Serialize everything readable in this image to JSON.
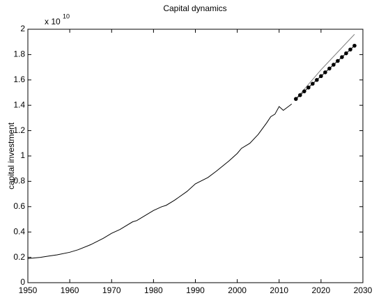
{
  "chart_data": {
    "type": "line",
    "title": "Capital dynamics",
    "ylabel": "capital investment",
    "exponent_label": {
      "base": "x 10",
      "power": "10"
    },
    "xlim": [
      1950,
      2030
    ],
    "xticks": [
      1950,
      1960,
      1970,
      1980,
      1990,
      2000,
      2010,
      2020,
      2030
    ],
    "ylim": [
      0,
      2
    ],
    "yticks": [
      0,
      0.2,
      0.4,
      0.6,
      0.8,
      1,
      1.2,
      1.4,
      1.6,
      1.8,
      2
    ],
    "series": [
      {
        "color": "#000000",
        "marker": false,
        "x": [
          1950,
          1953,
          1955,
          1957,
          1960,
          1962,
          1965,
          1968,
          1970,
          1972,
          1975,
          1976,
          1978,
          1980,
          1982,
          1983,
          1985,
          1988,
          1990,
          1993,
          1995,
          1998,
          2000,
          2001,
          2003,
          2005,
          2007,
          2008,
          2009,
          2010,
          2011,
          2013
        ],
        "values": [
          0.19,
          0.2,
          0.21,
          0.22,
          0.24,
          0.26,
          0.3,
          0.35,
          0.39,
          0.42,
          0.48,
          0.49,
          0.53,
          0.57,
          0.6,
          0.61,
          0.65,
          0.72,
          0.78,
          0.83,
          0.88,
          0.96,
          1.02,
          1.06,
          1.1,
          1.17,
          1.26,
          1.31,
          1.33,
          1.39,
          1.36,
          1.41
        ]
      },
      {
        "color": "#808080",
        "marker": false,
        "x": [
          2014,
          2020,
          2028
        ],
        "values": [
          1.45,
          1.68,
          1.96
        ]
      },
      {
        "color": "#000000",
        "marker": true,
        "x": [
          2014,
          2015,
          2016,
          2017,
          2018,
          2019,
          2020,
          2021,
          2022,
          2023,
          2024,
          2025,
          2026,
          2027,
          2028
        ],
        "values": [
          1.45,
          1.48,
          1.51,
          1.54,
          1.57,
          1.6,
          1.63,
          1.66,
          1.69,
          1.72,
          1.75,
          1.78,
          1.81,
          1.84,
          1.87
        ]
      }
    ]
  }
}
